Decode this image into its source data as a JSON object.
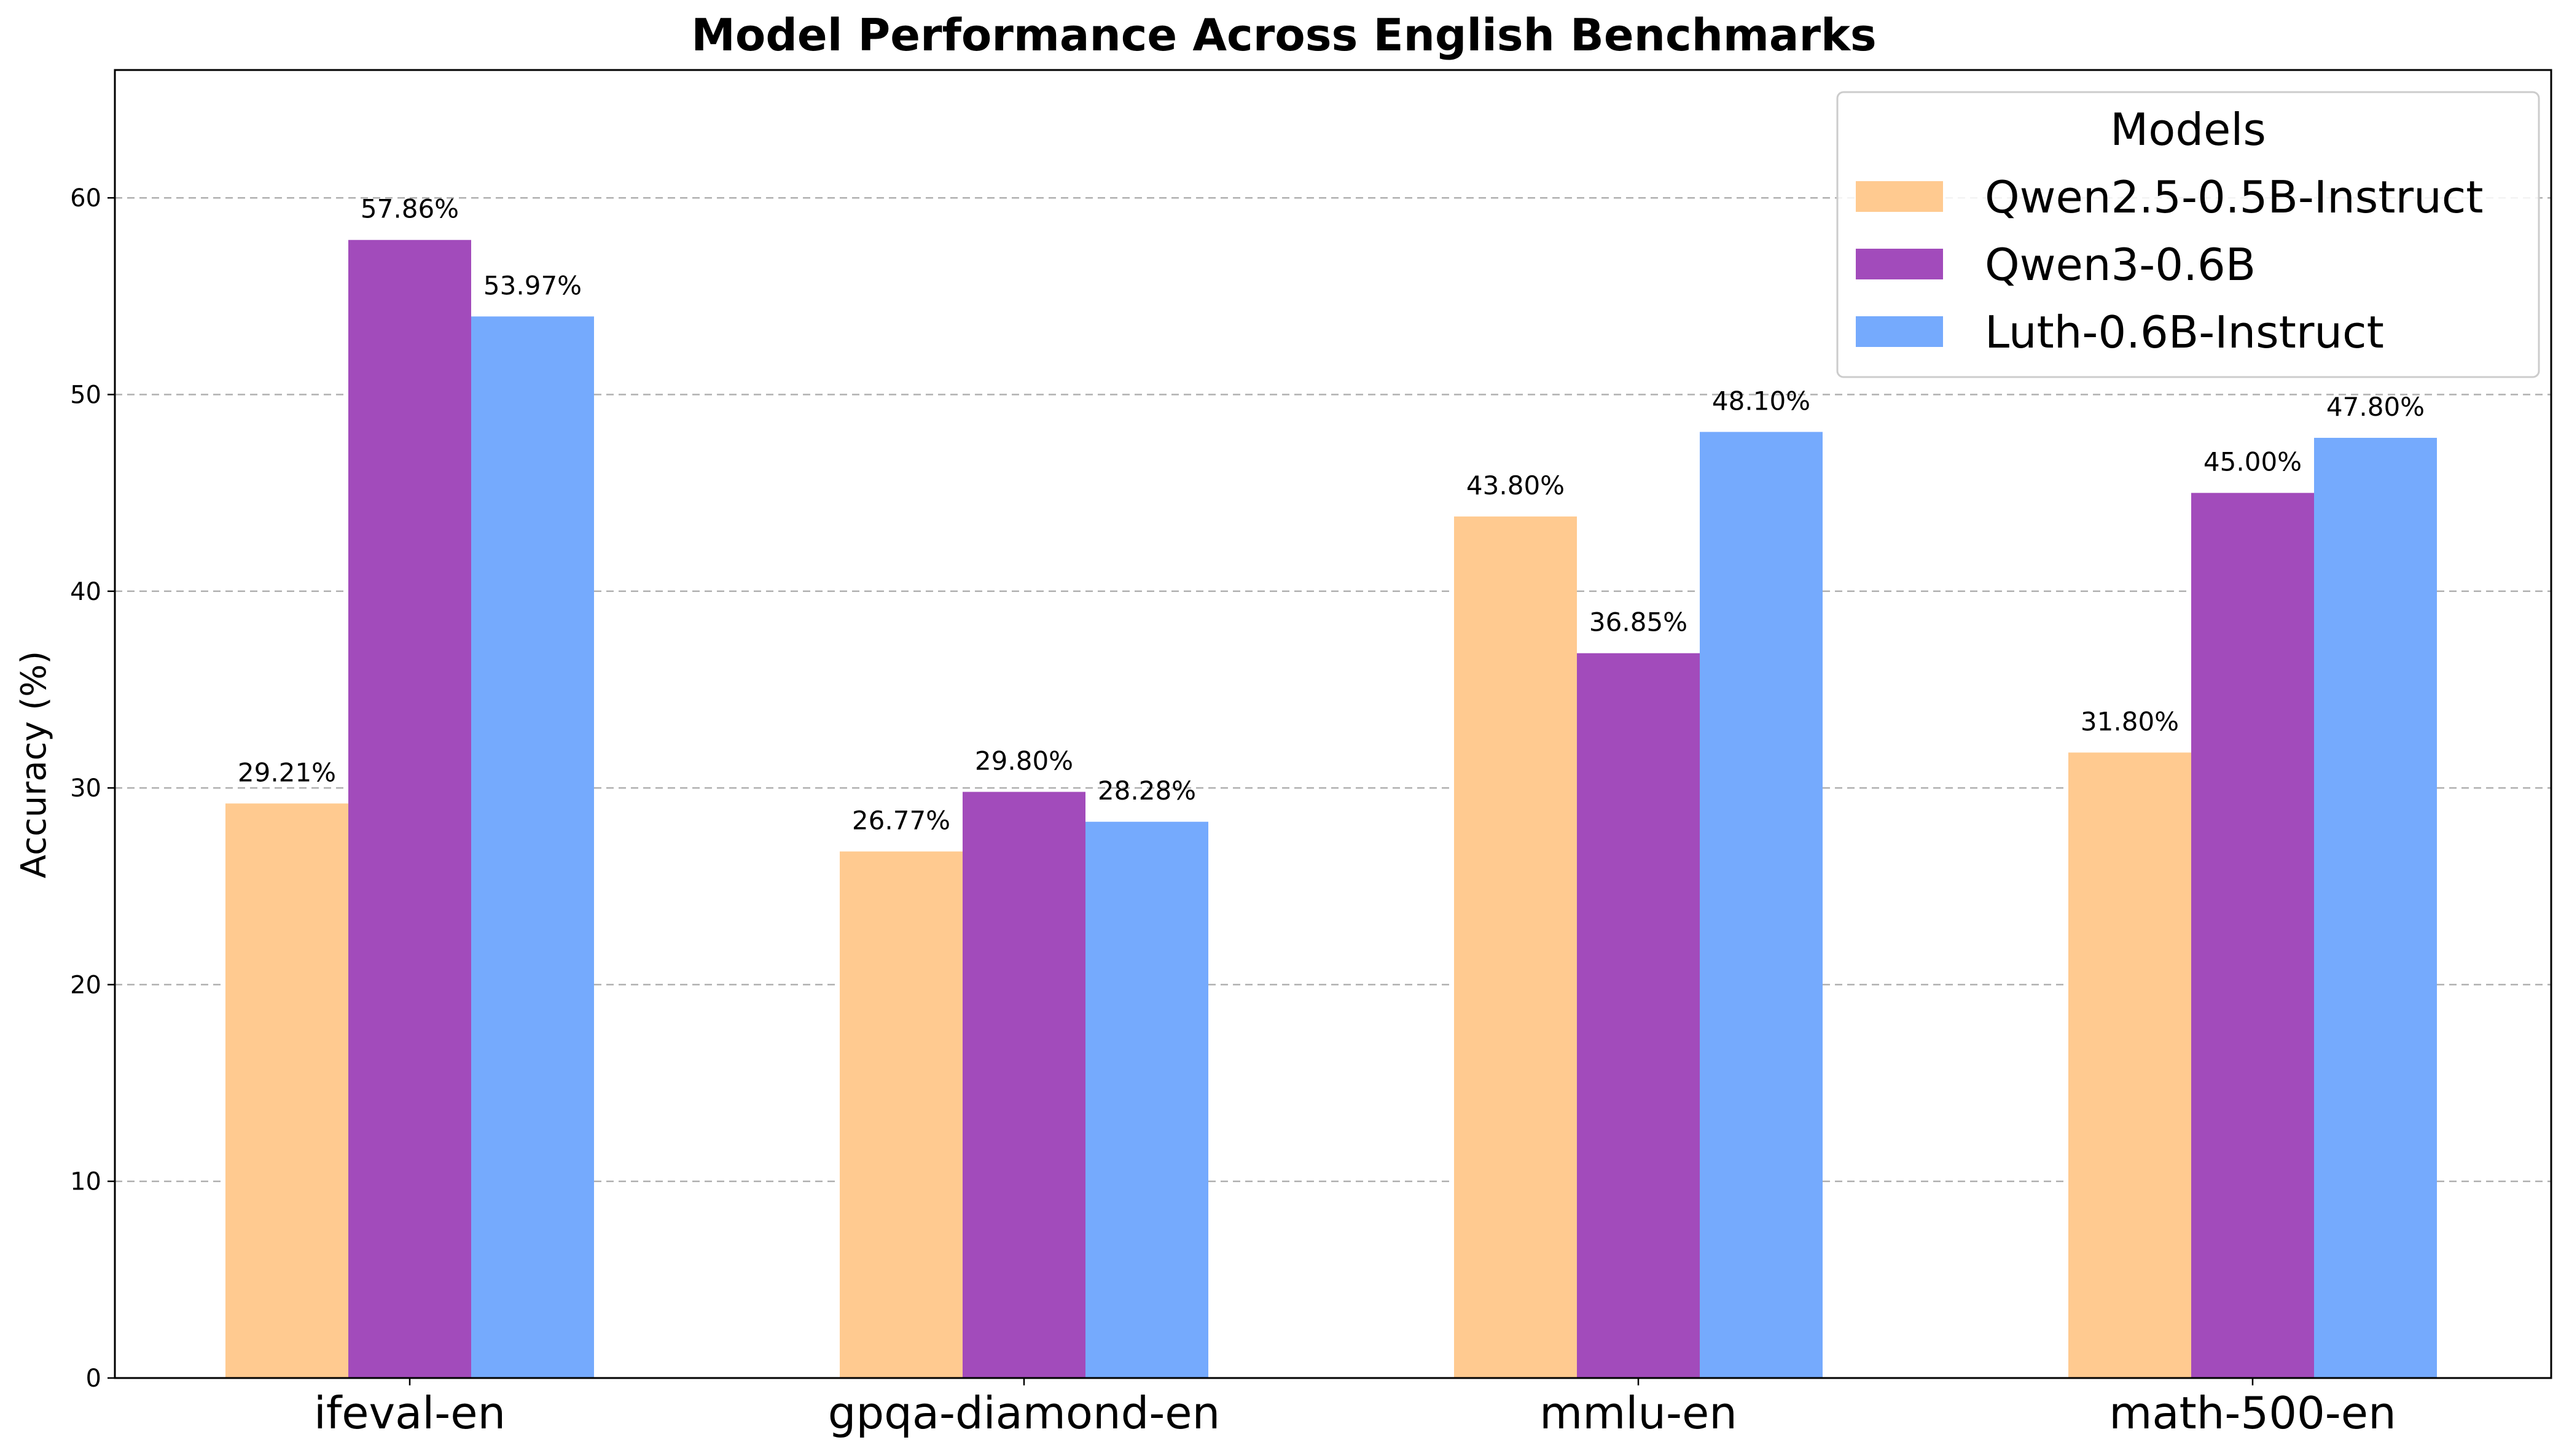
{
  "chart_data": {
    "type": "bar",
    "title": "Model Performance Across English Benchmarks",
    "xlabel": "",
    "ylabel": "Accuracy (%)",
    "ylim": [
      0,
      66.5
    ],
    "yticks": [
      0,
      10,
      20,
      30,
      40,
      50,
      60
    ],
    "grid": "y-dashed",
    "categories": [
      "ifeval-en",
      "gpqa-diamond-en",
      "mmlu-en",
      "math-500-en"
    ],
    "series": [
      {
        "name": "Qwen2.5-0.5B-Instruct",
        "color": "#FFCA90",
        "values": [
          29.21,
          26.77,
          43.8,
          31.8
        ],
        "labels": [
          "29.21%",
          "26.77%",
          "43.80%",
          "31.80%"
        ]
      },
      {
        "name": "Qwen3-0.6B",
        "color": "#A24BBB",
        "values": [
          57.86,
          29.8,
          36.85,
          45.0
        ],
        "labels": [
          "57.86%",
          "29.80%",
          "36.85%",
          "45.00%"
        ]
      },
      {
        "name": "Luth-0.6B-Instruct",
        "color": "#75AAFD",
        "values": [
          53.97,
          28.28,
          48.1,
          47.8
        ],
        "labels": [
          "53.97%",
          "28.28%",
          "48.10%",
          "47.80%"
        ]
      }
    ],
    "legend": {
      "title": "Models",
      "position": "top-right"
    }
  }
}
